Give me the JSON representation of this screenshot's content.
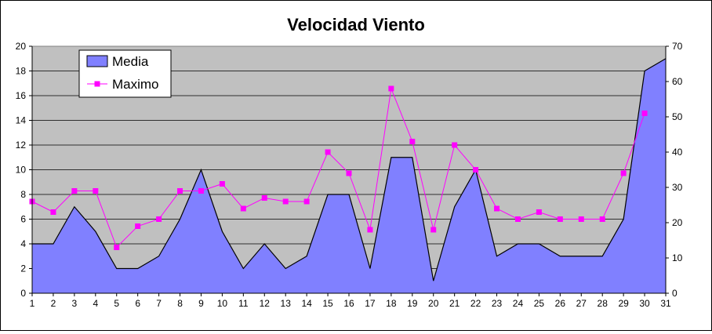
{
  "chart_data": {
    "type": "area",
    "title": "Velocidad Viento",
    "x": [
      1,
      2,
      3,
      4,
      5,
      6,
      7,
      8,
      9,
      10,
      11,
      12,
      13,
      14,
      15,
      16,
      17,
      18,
      19,
      20,
      21,
      22,
      23,
      24,
      25,
      26,
      27,
      28,
      29,
      30,
      31
    ],
    "series": [
      {
        "name": "Media",
        "type": "area",
        "axis": "left",
        "color": "#8080FF",
        "values": [
          4,
          4,
          7,
          5,
          2,
          2,
          3,
          6,
          10,
          5,
          2,
          4,
          2,
          3,
          8,
          8,
          2,
          11,
          11,
          1,
          7,
          10,
          3,
          4,
          4,
          3,
          3,
          3,
          6,
          18,
          19
        ]
      },
      {
        "name": "Maximo",
        "type": "line",
        "axis": "right",
        "color": "#FF00FF",
        "values": [
          26,
          23,
          29,
          29,
          13,
          19,
          21,
          29,
          29,
          31,
          24,
          27,
          26,
          26,
          40,
          34,
          18,
          58,
          43,
          18,
          42,
          35,
          24,
          21,
          23,
          21,
          21,
          21,
          34,
          51,
          null
        ]
      }
    ],
    "y_left": {
      "min": 0,
      "max": 20,
      "step": 2
    },
    "y_right": {
      "min": 0,
      "max": 70,
      "step": 10
    },
    "grid": true,
    "plot_background": "#C0C0C0",
    "legend_position": "top-left"
  }
}
